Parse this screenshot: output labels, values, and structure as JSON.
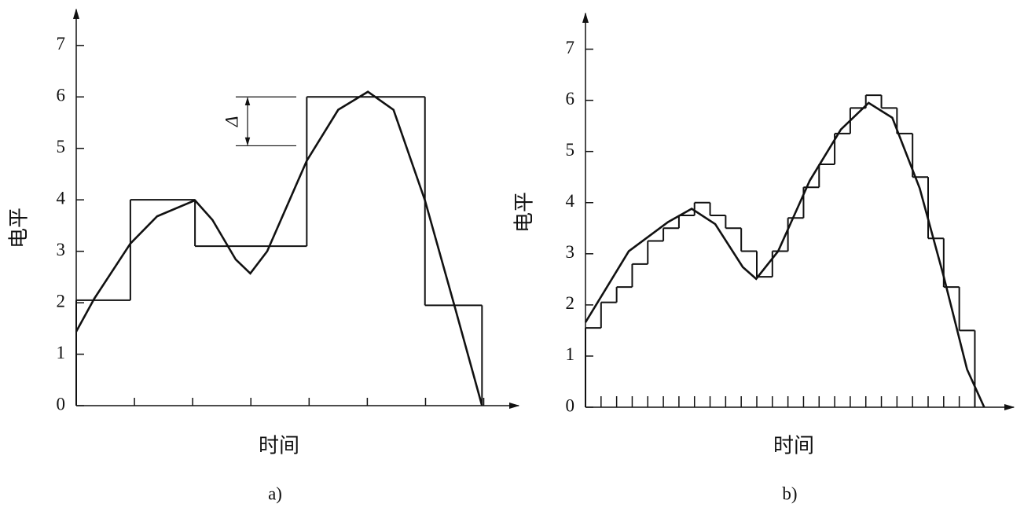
{
  "chart_data": [
    {
      "type": "line",
      "caption": "a)",
      "xlabel": "时间",
      "ylabel": "电平",
      "xlim": [
        0,
        7.6
      ],
      "ylim": [
        0,
        7.7
      ],
      "yticks": [
        0,
        1,
        2,
        3,
        4,
        5,
        6,
        7
      ],
      "xtick_marks": [
        1,
        2,
        3,
        4,
        5,
        6,
        7
      ],
      "series": [
        {
          "kind": "curve",
          "color": "#111111",
          "x": [
            0,
            0.31,
            0.93,
            1.39,
            2.04,
            2.34,
            2.74,
            2.99,
            3.28,
            3.96,
            4.5,
            5.01,
            5.45,
            5.99,
            6.5,
            6.97
          ],
          "values": [
            1.44,
            2.08,
            3.15,
            3.68,
            3.99,
            3.61,
            2.84,
            2.57,
            3.0,
            4.76,
            5.75,
            6.1,
            5.75,
            3.99,
            1.93,
            0
          ]
        },
        {
          "kind": "step",
          "color": "#111111",
          "x": [
            0,
            0.93,
            2.04,
            3.96,
            5.99
          ],
          "x_end": 6.97,
          "values": [
            2.05,
            4,
            3.1,
            6,
            1.95
          ]
        }
      ],
      "delta": {
        "label": "Δ",
        "from": 5.05,
        "to": 6
      }
    },
    {
      "type": "line",
      "caption": "b)",
      "xlabel": "时间",
      "ylabel": "电平",
      "xlim": [
        0,
        27.5
      ],
      "ylim": [
        0,
        7.7
      ],
      "yticks": [
        0,
        1,
        2,
        3,
        4,
        5,
        6,
        7
      ],
      "xtick_marks": [
        1,
        2,
        3,
        4,
        5,
        6,
        7,
        8,
        9,
        10,
        11,
        12,
        13,
        14,
        15,
        16,
        17,
        18,
        19,
        20,
        21,
        22,
        23,
        24,
        25
      ],
      "series": [
        {
          "kind": "curve",
          "color": "#111111",
          "x": [
            0,
            2.78,
            5.3,
            6.82,
            8.33,
            10.1,
            10.96,
            12.37,
            14.4,
            16.4,
            18.18,
            19.7,
            21.46,
            22.98,
            24.5,
            25.6
          ],
          "values": [
            1.66,
            3.05,
            3.62,
            3.88,
            3.58,
            2.74,
            2.51,
            3.05,
            4.43,
            5.43,
            5.95,
            5.66,
            4.28,
            2.58,
            0.74,
            0
          ]
        },
        {
          "kind": "step",
          "color": "#111111",
          "x": [
            0,
            1,
            2,
            3,
            4,
            5,
            6,
            7,
            8,
            9,
            10,
            11,
            12,
            13,
            14,
            15,
            16,
            17,
            18,
            19,
            20,
            21,
            22,
            23,
            24
          ],
          "x_end": 25,
          "values": [
            1.55,
            2.05,
            2.35,
            2.8,
            3.25,
            3.5,
            3.75,
            4.0,
            3.75,
            3.5,
            3.05,
            2.55,
            3.05,
            3.7,
            4.3,
            4.75,
            5.35,
            5.85,
            6.1,
            5.85,
            5.35,
            4.5,
            3.3,
            2.35,
            1.5
          ]
        }
      ]
    }
  ]
}
